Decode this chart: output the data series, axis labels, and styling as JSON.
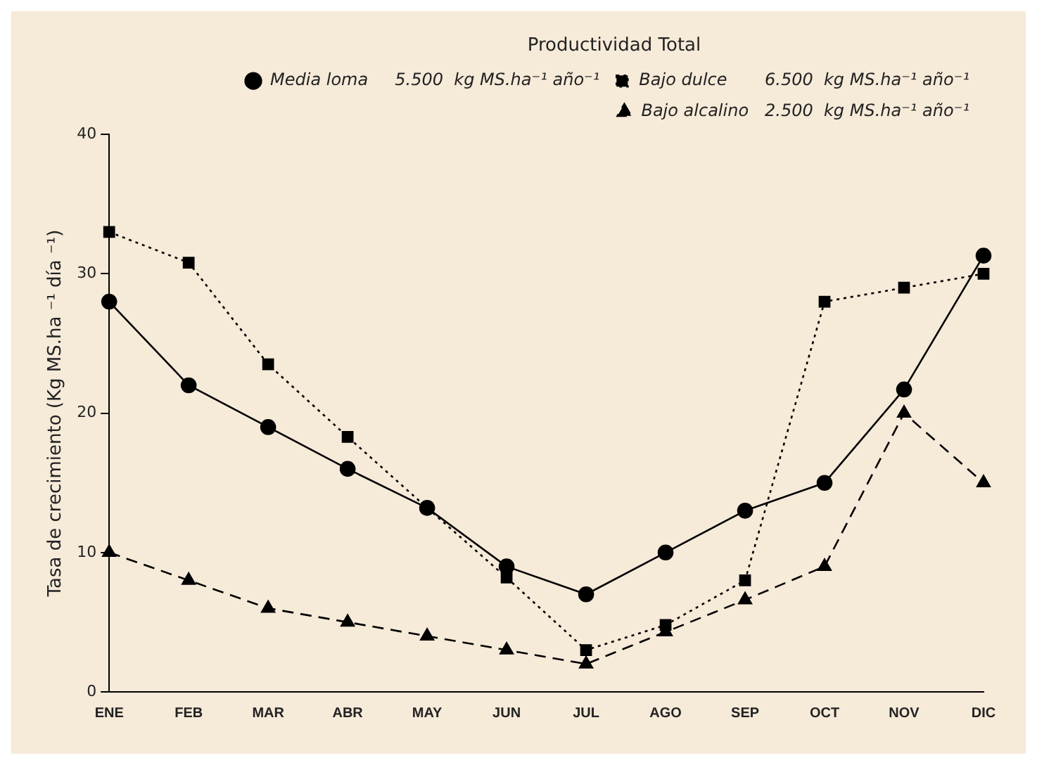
{
  "chart_data": {
    "type": "line",
    "ylabel": "Tasa de crecimiento (Kg MS.ha ⁻¹ día ⁻¹)",
    "legend_title": "Productividad Total",
    "categories": [
      "ENE",
      "FEB",
      "MAR",
      "ABR",
      "MAY",
      "JUN",
      "JUL",
      "AGO",
      "SEP",
      "OCT",
      "NOV",
      "DIC"
    ],
    "series": [
      {
        "name": "Media loma     5.500  kg MS.ha⁻¹ año⁻¹",
        "color": "#000000",
        "marker": "circle",
        "line_style": "solid",
        "values": [
          28,
          22,
          19,
          16,
          13.2,
          9,
          7,
          10,
          13,
          15,
          21.7,
          31.3
        ]
      },
      {
        "name": "Bajo dulce       6.500  kg MS.ha⁻¹ año⁻¹",
        "color": "#000000",
        "marker": "square",
        "line_style": "dotted",
        "values": [
          33,
          30.8,
          23.5,
          18.3,
          13.2,
          8.2,
          3,
          4.8,
          8,
          28,
          29,
          30
        ]
      },
      {
        "name": "Bajo alcalino   2.500  kg MS.ha⁻¹ año⁻¹",
        "color": "#000000",
        "marker": "triangle",
        "line_style": "dashed",
        "values": [
          10,
          8,
          6,
          5,
          4,
          3,
          2,
          4.3,
          6.6,
          9,
          20,
          15
        ]
      }
    ],
    "ylim": [
      0,
      40
    ],
    "yticks": [
      0,
      10,
      20,
      30,
      40
    ],
    "grid": false,
    "legend": "top right"
  }
}
